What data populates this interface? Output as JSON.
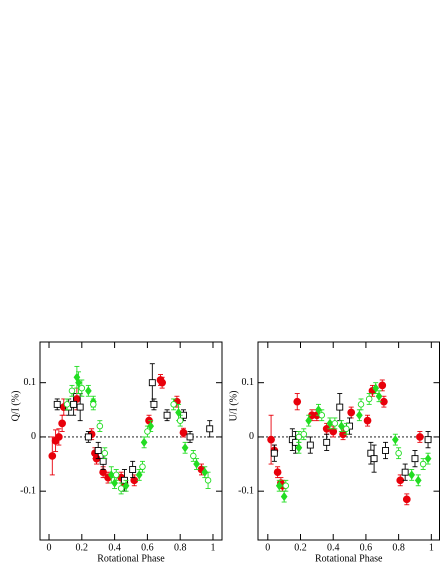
{
  "chart_data": [
    {
      "type": "scatter",
      "ylabel": "Q/I (%)",
      "xlabel": "Rotational Phase",
      "xlim": [
        -0.055,
        1.055
      ],
      "ylim": [
        -0.19,
        0.175
      ],
      "xticks": [
        0,
        0.2,
        0.4,
        0.6,
        0.8,
        1
      ],
      "yticks": [
        -0.1,
        0,
        0.1
      ],
      "zero_line": true,
      "series": [
        {
          "color": "#e8000b",
          "marker": "circle",
          "fill": "filled",
          "x": [
            0.02,
            0.04,
            0.06,
            0.08,
            0.09,
            0.17,
            0.26,
            0.28,
            0.29,
            0.33,
            0.36,
            0.44,
            0.46,
            0.52,
            0.61,
            0.68,
            0.69,
            0.78,
            0.82,
            0.93
          ],
          "values": [
            -0.035,
            -0.007,
            0.0,
            0.025,
            0.055,
            0.07,
            0.005,
            -0.03,
            -0.04,
            -0.065,
            -0.075,
            -0.075,
            -0.085,
            -0.08,
            0.03,
            0.105,
            0.1,
            0.065,
            0.008,
            -0.06
          ],
          "errors": [
            0.035,
            0.02,
            0.015,
            0.015,
            0.015,
            0.02,
            0.01,
            0.01,
            0.01,
            0.01,
            0.01,
            0.01,
            0.01,
            0.01,
            0.01,
            0.01,
            0.01,
            0.01,
            0.008,
            0.01
          ]
        },
        {
          "color": "#000000",
          "marker": "square",
          "fill": "open",
          "x": [
            0.05,
            0.12,
            0.15,
            0.19,
            0.24,
            0.3,
            0.33,
            0.46,
            0.51,
            0.63,
            0.64,
            0.72,
            0.82,
            0.86,
            0.98
          ],
          "values": [
            0.06,
            0.055,
            0.06,
            0.055,
            0.0,
            -0.025,
            -0.045,
            -0.08,
            -0.06,
            0.1,
            0.06,
            0.04,
            0.04,
            0.0,
            0.015
          ],
          "errors": [
            0.01,
            0.015,
            0.02,
            0.025,
            0.01,
            0.015,
            0.015,
            0.02,
            0.015,
            0.035,
            0.01,
            0.01,
            0.01,
            0.01,
            0.015
          ]
        },
        {
          "color": "#22dd22",
          "marker": "diamond",
          "fill": "filled",
          "x": [
            0.17,
            0.18,
            0.24,
            0.27,
            0.38,
            0.4,
            0.47,
            0.55,
            0.58,
            0.62,
            0.79,
            0.83,
            0.9,
            0.95
          ],
          "values": [
            0.11,
            0.1,
            0.085,
            0.065,
            -0.07,
            -0.085,
            -0.09,
            -0.07,
            -0.01,
            0.02,
            0.045,
            -0.02,
            -0.05,
            -0.065
          ],
          "errors": [
            0.02,
            0.02,
            0.01,
            0.01,
            0.015,
            0.01,
            0.01,
            0.01,
            0.01,
            0.01,
            0.015,
            0.01,
            0.01,
            0.01
          ]
        },
        {
          "color": "#22dd22",
          "marker": "circle",
          "fill": "open",
          "x": [
            0.11,
            0.14,
            0.2,
            0.27,
            0.31,
            0.34,
            0.41,
            0.44,
            0.57,
            0.6,
            0.76,
            0.8,
            0.88,
            0.97
          ],
          "values": [
            0.06,
            0.085,
            0.09,
            0.06,
            0.02,
            -0.03,
            -0.07,
            -0.095,
            -0.055,
            0.01,
            0.06,
            0.03,
            -0.035,
            -0.08
          ],
          "errors": [
            0.01,
            0.01,
            0.015,
            0.01,
            0.01,
            0.01,
            0.01,
            0.01,
            0.01,
            0.01,
            0.01,
            0.01,
            0.01,
            0.015
          ]
        }
      ]
    },
    {
      "type": "scatter",
      "ylabel": "U/I (%)",
      "xlabel": "Rotational Phase",
      "xlim": [
        -0.06,
        1.05
      ],
      "ylim": [
        -0.19,
        0.175
      ],
      "xticks": [
        0,
        0.2,
        0.4,
        0.6,
        0.8,
        1
      ],
      "yticks": [
        -0.1,
        0,
        0.1
      ],
      "zero_line": true,
      "series": [
        {
          "color": "#e8000b",
          "marker": "circle",
          "fill": "filled",
          "x": [
            0.02,
            0.04,
            0.06,
            0.08,
            0.09,
            0.18,
            0.27,
            0.3,
            0.36,
            0.4,
            0.46,
            0.51,
            0.61,
            0.64,
            0.7,
            0.71,
            0.81,
            0.85,
            0.93
          ],
          "values": [
            -0.005,
            -0.025,
            -0.065,
            -0.085,
            -0.09,
            0.065,
            0.04,
            0.04,
            0.015,
            0.01,
            0.005,
            0.045,
            0.03,
            0.085,
            0.095,
            0.065,
            -0.08,
            -0.115,
            0.0
          ],
          "errors": [
            0.045,
            0.01,
            0.01,
            0.01,
            0.01,
            0.015,
            0.01,
            0.01,
            0.01,
            0.01,
            0.01,
            0.01,
            0.01,
            0.01,
            0.01,
            0.01,
            0.01,
            0.01,
            0.01
          ]
        },
        {
          "color": "#000000",
          "marker": "square",
          "fill": "open",
          "x": [
            0.04,
            0.15,
            0.17,
            0.26,
            0.36,
            0.44,
            0.5,
            0.63,
            0.65,
            0.72,
            0.84,
            0.9,
            0.98
          ],
          "values": [
            -0.03,
            -0.005,
            -0.01,
            -0.015,
            -0.01,
            0.055,
            0.02,
            -0.03,
            -0.04,
            -0.025,
            -0.065,
            -0.04,
            -0.005
          ],
          "errors": [
            0.015,
            0.02,
            0.02,
            0.015,
            0.015,
            0.025,
            0.015,
            0.02,
            0.025,
            0.015,
            0.015,
            0.015,
            0.015
          ]
        },
        {
          "color": "#22dd22",
          "marker": "diamond",
          "fill": "filled",
          "x": [
            0.07,
            0.1,
            0.19,
            0.25,
            0.31,
            0.38,
            0.45,
            0.56,
            0.66,
            0.68,
            0.78,
            0.88,
            0.92,
            0.98
          ],
          "values": [
            -0.09,
            -0.11,
            -0.02,
            0.03,
            0.05,
            0.025,
            0.02,
            0.04,
            0.09,
            0.075,
            -0.005,
            -0.07,
            -0.08,
            -0.04
          ],
          "errors": [
            0.01,
            0.01,
            0.01,
            0.01,
            0.01,
            0.01,
            0.01,
            0.01,
            0.01,
            0.01,
            0.01,
            0.01,
            0.01,
            0.01
          ]
        },
        {
          "color": "#22dd22",
          "marker": "circle",
          "fill": "open",
          "x": [
            0.11,
            0.19,
            0.22,
            0.33,
            0.41,
            0.48,
            0.57,
            0.62,
            0.8,
            0.95
          ],
          "values": [
            -0.09,
            0.0,
            0.005,
            0.04,
            0.025,
            0.015,
            0.06,
            0.07,
            -0.03,
            -0.05
          ],
          "errors": [
            0.01,
            0.01,
            0.01,
            0.01,
            0.01,
            0.01,
            0.01,
            0.01,
            0.01,
            0.01
          ]
        }
      ]
    }
  ]
}
